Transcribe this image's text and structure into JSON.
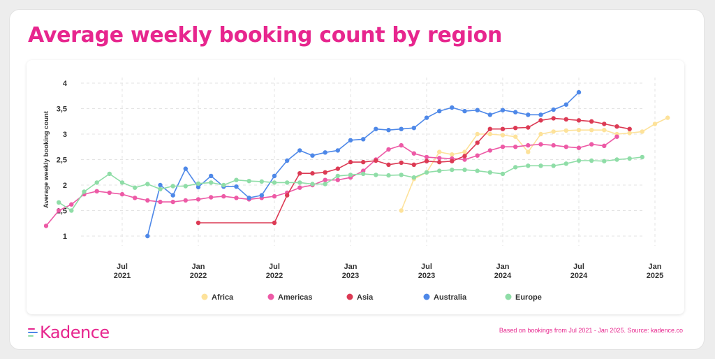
{
  "title": "Average weekly booking count by region",
  "logo_text": "Kadence",
  "source_note": "Based on bookings from Jul 2021 - Jan 2025. Source: kadence.co",
  "chart_data": {
    "type": "line",
    "ylabel": "Average weekly booking count",
    "ylim": [
      1,
      4
    ],
    "yticks": [
      "1",
      "1,5",
      "2",
      "2,5",
      "3",
      "3,5",
      "4"
    ],
    "xticks": [
      {
        "line1": "Jul",
        "line2": "2021"
      },
      {
        "line1": "Jan",
        "line2": "2022"
      },
      {
        "line1": "Jul",
        "line2": "2022"
      },
      {
        "line1": "Jan",
        "line2": "2023"
      },
      {
        "line1": "Jul",
        "line2": "2023"
      },
      {
        "line1": "Jan",
        "line2": "2024"
      },
      {
        "line1": "Jul",
        "line2": "2024"
      },
      {
        "line1": "Jan",
        "line2": "2025"
      }
    ],
    "x_start": "2021-03",
    "legend": "bottom",
    "series": [
      {
        "name": "Africa",
        "color": "#fde29a",
        "points": [
          [
            "2023-05",
            1.5
          ],
          [
            "2023-06",
            2.12
          ],
          [
            "2023-07",
            2.25
          ],
          [
            "2023-08",
            2.65
          ],
          [
            "2023-09",
            2.6
          ],
          [
            "2023-10",
            2.65
          ],
          [
            "2023-11",
            3.0
          ],
          [
            "2023-12",
            3.0
          ],
          [
            "2024-01",
            2.98
          ],
          [
            "2024-02",
            2.95
          ],
          [
            "2024-03",
            2.65
          ],
          [
            "2024-04",
            3.0
          ],
          [
            "2024-05",
            3.05
          ],
          [
            "2024-06",
            3.07
          ],
          [
            "2024-07",
            3.08
          ],
          [
            "2024-08",
            3.08
          ],
          [
            "2024-09",
            3.08
          ],
          [
            "2024-10",
            3.0
          ],
          [
            "2024-11",
            3.02
          ],
          [
            "2024-12",
            3.05
          ],
          [
            "2025-01",
            3.2
          ],
          [
            "2025-02",
            3.32
          ]
        ]
      },
      {
        "name": "Americas",
        "color": "#ed5aa6",
        "points": [
          [
            "2021-01",
            1.2
          ],
          [
            "2021-02",
            1.5
          ],
          [
            "2021-03",
            1.62
          ],
          [
            "2021-04",
            1.82
          ],
          [
            "2021-05",
            1.88
          ],
          [
            "2021-06",
            1.85
          ],
          [
            "2021-07",
            1.82
          ],
          [
            "2021-08",
            1.75
          ],
          [
            "2021-09",
            1.7
          ],
          [
            "2021-10",
            1.67
          ],
          [
            "2021-11",
            1.67
          ],
          [
            "2021-12",
            1.7
          ],
          [
            "2022-01",
            1.72
          ],
          [
            "2022-02",
            1.76
          ],
          [
            "2022-03",
            1.78
          ],
          [
            "2022-04",
            1.75
          ],
          [
            "2022-05",
            1.72
          ],
          [
            "2022-06",
            1.75
          ],
          [
            "2022-07",
            1.78
          ],
          [
            "2022-08",
            1.85
          ],
          [
            "2022-09",
            1.95
          ],
          [
            "2022-10",
            2.0
          ],
          [
            "2022-11",
            2.1
          ],
          [
            "2022-12",
            2.1
          ],
          [
            "2023-01",
            2.15
          ],
          [
            "2023-02",
            2.28
          ],
          [
            "2023-03",
            2.5
          ],
          [
            "2023-04",
            2.7
          ],
          [
            "2023-05",
            2.78
          ],
          [
            "2023-06",
            2.62
          ],
          [
            "2023-07",
            2.55
          ],
          [
            "2023-08",
            2.53
          ],
          [
            "2023-09",
            2.52
          ],
          [
            "2023-10",
            2.5
          ],
          [
            "2023-11",
            2.58
          ],
          [
            "2023-12",
            2.68
          ],
          [
            "2024-01",
            2.75
          ],
          [
            "2024-02",
            2.75
          ],
          [
            "2024-03",
            2.78
          ],
          [
            "2024-04",
            2.8
          ],
          [
            "2024-05",
            2.78
          ],
          [
            "2024-06",
            2.75
          ],
          [
            "2024-07",
            2.73
          ],
          [
            "2024-08",
            2.8
          ],
          [
            "2024-09",
            2.77
          ],
          [
            "2024-10",
            2.95
          ]
        ]
      },
      {
        "name": "Asia",
        "color": "#dc3a54",
        "points": [
          [
            "2022-01",
            1.26
          ],
          [
            "2022-07",
            1.26
          ],
          [
            "2022-08",
            1.8
          ],
          [
            "2022-09",
            2.23
          ],
          [
            "2022-10",
            2.23
          ],
          [
            "2022-11",
            2.25
          ],
          [
            "2022-12",
            2.32
          ],
          [
            "2023-01",
            2.45
          ],
          [
            "2023-02",
            2.45
          ],
          [
            "2023-03",
            2.48
          ],
          [
            "2023-04",
            2.4
          ],
          [
            "2023-05",
            2.44
          ],
          [
            "2023-06",
            2.4
          ],
          [
            "2023-07",
            2.47
          ],
          [
            "2023-08",
            2.45
          ],
          [
            "2023-09",
            2.47
          ],
          [
            "2023-10",
            2.57
          ],
          [
            "2023-11",
            2.83
          ],
          [
            "2023-12",
            3.1
          ],
          [
            "2024-01",
            3.1
          ],
          [
            "2024-02",
            3.12
          ],
          [
            "2024-03",
            3.13
          ],
          [
            "2024-04",
            3.27
          ],
          [
            "2024-05",
            3.31
          ],
          [
            "2024-06",
            3.29
          ],
          [
            "2024-07",
            3.27
          ],
          [
            "2024-08",
            3.25
          ],
          [
            "2024-09",
            3.2
          ],
          [
            "2024-10",
            3.15
          ],
          [
            "2024-11",
            3.1
          ]
        ]
      },
      {
        "name": "Australia",
        "color": "#4e88e8",
        "points": [
          [
            "2021-09",
            1.0
          ],
          [
            "2021-10",
            2.0
          ],
          [
            "2021-11",
            1.8
          ],
          [
            "2021-12",
            2.32
          ],
          [
            "2022-01",
            1.96
          ],
          [
            "2022-02",
            2.18
          ],
          [
            "2022-03",
            1.97
          ],
          [
            "2022-04",
            1.97
          ],
          [
            "2022-05",
            1.75
          ],
          [
            "2022-06",
            1.8
          ],
          [
            "2022-07",
            2.18
          ],
          [
            "2022-08",
            2.48
          ],
          [
            "2022-09",
            2.68
          ],
          [
            "2022-10",
            2.58
          ],
          [
            "2022-11",
            2.64
          ],
          [
            "2022-12",
            2.68
          ],
          [
            "2023-01",
            2.88
          ],
          [
            "2023-02",
            2.9
          ],
          [
            "2023-03",
            3.1
          ],
          [
            "2023-04",
            3.08
          ],
          [
            "2023-05",
            3.1
          ],
          [
            "2023-06",
            3.12
          ],
          [
            "2023-07",
            3.32
          ],
          [
            "2023-08",
            3.45
          ],
          [
            "2023-09",
            3.52
          ],
          [
            "2023-10",
            3.45
          ],
          [
            "2023-11",
            3.47
          ],
          [
            "2023-12",
            3.38
          ],
          [
            "2024-01",
            3.47
          ],
          [
            "2024-02",
            3.43
          ],
          [
            "2024-03",
            3.38
          ],
          [
            "2024-04",
            3.38
          ],
          [
            "2024-05",
            3.48
          ],
          [
            "2024-06",
            3.58
          ],
          [
            "2024-07",
            3.82
          ]
        ]
      },
      {
        "name": "Europe",
        "color": "#8fdda7",
        "points": [
          [
            "2021-02",
            1.66
          ],
          [
            "2021-03",
            1.5
          ],
          [
            "2021-04",
            1.87
          ],
          [
            "2021-05",
            2.05
          ],
          [
            "2021-06",
            2.22
          ],
          [
            "2021-07",
            2.05
          ],
          [
            "2021-08",
            1.95
          ],
          [
            "2021-09",
            2.02
          ],
          [
            "2021-10",
            1.92
          ],
          [
            "2021-11",
            1.98
          ],
          [
            "2021-12",
            1.98
          ],
          [
            "2022-01",
            2.03
          ],
          [
            "2022-02",
            2.05
          ],
          [
            "2022-03",
            2.0
          ],
          [
            "2022-04",
            2.1
          ],
          [
            "2022-05",
            2.08
          ],
          [
            "2022-06",
            2.07
          ],
          [
            "2022-07",
            2.05
          ],
          [
            "2022-08",
            2.05
          ],
          [
            "2022-09",
            2.05
          ],
          [
            "2022-10",
            2.02
          ],
          [
            "2022-11",
            2.02
          ],
          [
            "2022-12",
            2.18
          ],
          [
            "2023-01",
            2.2
          ],
          [
            "2023-02",
            2.22
          ],
          [
            "2023-03",
            2.2
          ],
          [
            "2023-04",
            2.19
          ],
          [
            "2023-05",
            2.2
          ],
          [
            "2023-06",
            2.15
          ],
          [
            "2023-07",
            2.25
          ],
          [
            "2023-08",
            2.28
          ],
          [
            "2023-09",
            2.3
          ],
          [
            "2023-10",
            2.3
          ],
          [
            "2023-11",
            2.28
          ],
          [
            "2023-12",
            2.25
          ],
          [
            "2024-01",
            2.22
          ],
          [
            "2024-02",
            2.35
          ],
          [
            "2024-03",
            2.38
          ],
          [
            "2024-04",
            2.38
          ],
          [
            "2024-05",
            2.38
          ],
          [
            "2024-06",
            2.42
          ],
          [
            "2024-07",
            2.48
          ],
          [
            "2024-08",
            2.48
          ],
          [
            "2024-09",
            2.47
          ],
          [
            "2024-10",
            2.5
          ],
          [
            "2024-11",
            2.52
          ],
          [
            "2024-12",
            2.55
          ]
        ]
      }
    ]
  }
}
